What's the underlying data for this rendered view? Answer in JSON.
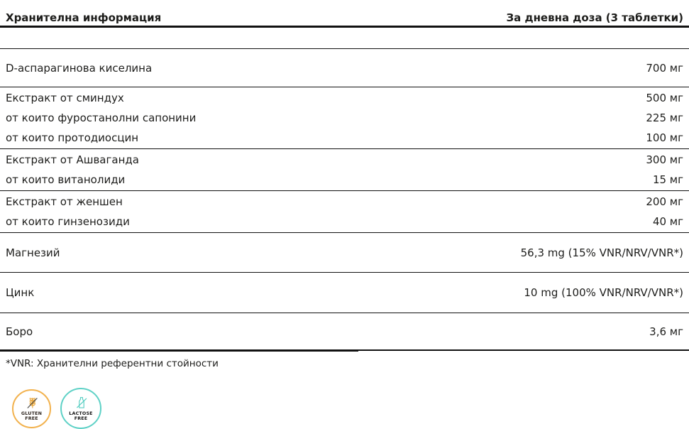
{
  "table": {
    "header": {
      "title": "Хранителна информация",
      "dose": "За дневна доза (3 таблетки)"
    },
    "sections": [
      {
        "tall": true,
        "size": "s-d",
        "rows": [
          {
            "label": "D-аспарагинова киселина",
            "value": "700 мг"
          }
        ]
      },
      {
        "tall": false,
        "rows": [
          {
            "label": "Екстракт от сминдух",
            "value": "500 мг"
          },
          {
            "label": "от които фуростанолни сапонини",
            "value": "225 мг"
          },
          {
            "label": "от които протодиосцин",
            "value": "100 мг"
          }
        ]
      },
      {
        "tall": false,
        "rows": [
          {
            "label": "Екстракт от Ашваганда",
            "value": "300 мг"
          },
          {
            "label": "от които витанолиди",
            "value": "15 мг"
          }
        ]
      },
      {
        "tall": false,
        "rows": [
          {
            "label": "Екстракт от женшен",
            "value": "200 мг"
          },
          {
            "label": "от които гинзенозиди",
            "value": "40 мг"
          }
        ]
      },
      {
        "tall": true,
        "size": "s-mg",
        "rows": [
          {
            "label": "Магнезий",
            "value": "56,3 mg (15% VNR/NRV/VNR*)"
          }
        ]
      },
      {
        "tall": true,
        "size": "s-zn",
        "rows": [
          {
            "label": "Цинк",
            "value": "10 mg (100% VNR/NRV/VNR*)"
          }
        ]
      },
      {
        "tall": true,
        "size": "s-b",
        "rows": [
          {
            "label": "Боро",
            "value": "3,6 мг"
          }
        ]
      }
    ]
  },
  "footnote": "*VNR: Хранителни референтни стойности",
  "badges": {
    "gluten": {
      "line1": "GLUTEN",
      "line2": "FREE",
      "color": "#F2B24E",
      "icon": "wheat-icon"
    },
    "lactose": {
      "line1": "LACTOSE",
      "line2": "FREE",
      "color": "#5ED1C6",
      "icon": "milk-bottle-icon"
    }
  },
  "colors": {
    "text": "#1d1d1b",
    "rule": "#111111",
    "gluten_accent": "#F2B24E",
    "lactose_accent": "#5ED1C6"
  }
}
